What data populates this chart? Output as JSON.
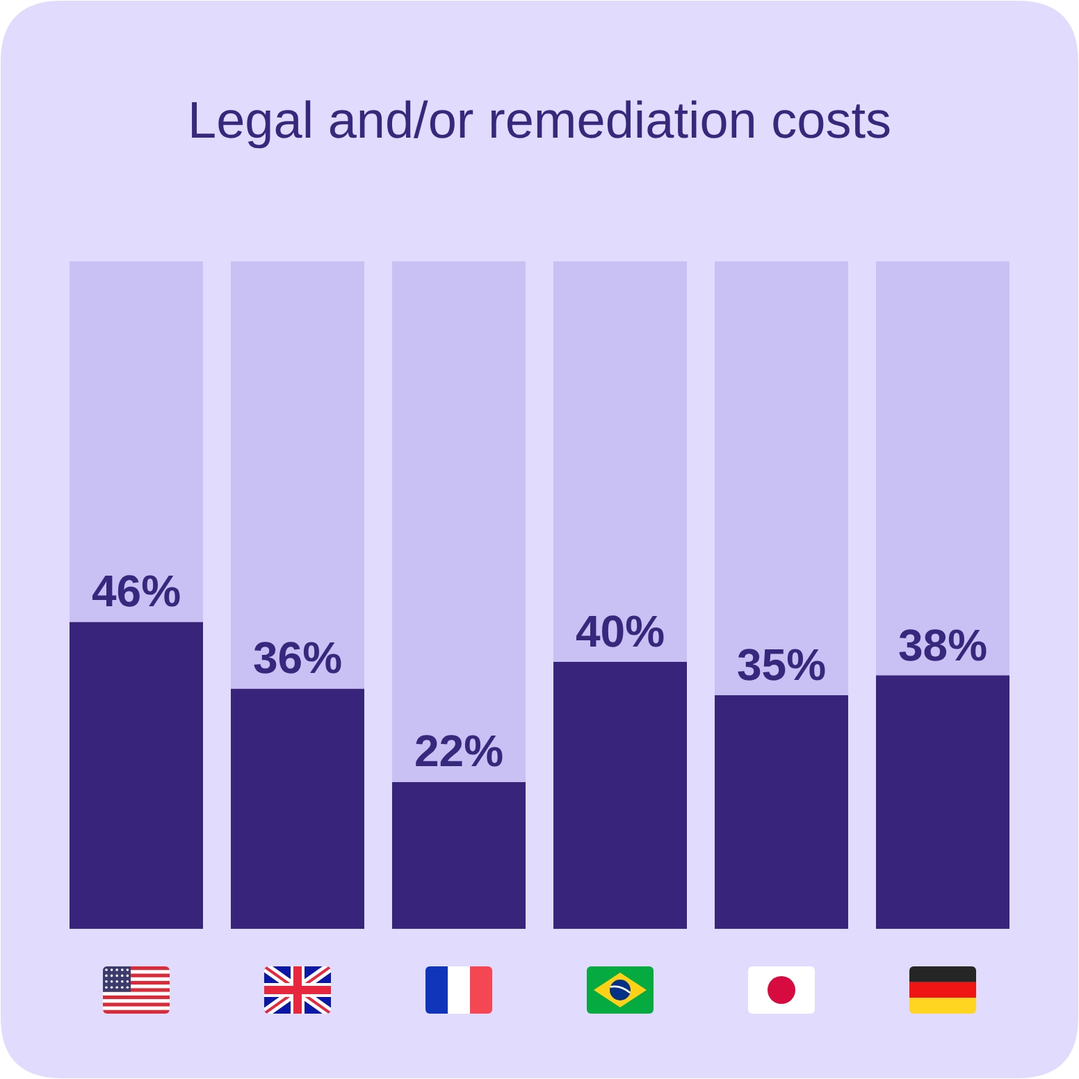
{
  "chart_data": {
    "type": "bar",
    "stacked": true,
    "title": "Legal and/or remediation costs",
    "categories": [
      null,
      null,
      null,
      null,
      null,
      null
    ],
    "series": [
      {
        "color": "#38257b",
        "values": [
          46,
          36,
          22,
          40,
          35,
          38
        ],
        "value_labels": [
          "46%",
          "36%",
          "22%",
          "40%",
          "35%",
          "38%"
        ]
      },
      {
        "color": "#c9c0f3",
        "values": [
          54,
          64,
          78,
          60,
          65,
          62
        ]
      }
    ],
    "tick_labels": false
  }
}
